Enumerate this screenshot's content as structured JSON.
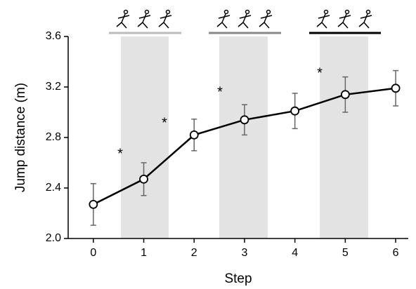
{
  "chart_data": {
    "type": "line",
    "xlabel": "Step",
    "ylabel": "Jump distance (m)",
    "x": [
      0,
      1,
      2,
      3,
      4,
      5,
      6
    ],
    "series": [
      {
        "color": "#000000",
        "values": [
          2.27,
          2.47,
          2.82,
          2.94,
          3.01,
          3.14,
          3.19
        ],
        "errors": [
          0.165,
          0.13,
          0.125,
          0.12,
          0.14,
          0.14,
          0.14
        ],
        "error_color": "#666666"
      }
    ],
    "xlim": [
      -0.5,
      6.25
    ],
    "xticks": [
      0,
      1,
      2,
      3,
      4,
      5,
      6
    ],
    "ylim": [
      2.0,
      3.6
    ],
    "yticks": [
      {
        "value": 2.0,
        "label": "2.0"
      },
      2.4,
      2.8,
      3.2,
      3.6
    ],
    "annotations": [
      "*",
      "*",
      "*",
      "*"
    ]
  }
}
